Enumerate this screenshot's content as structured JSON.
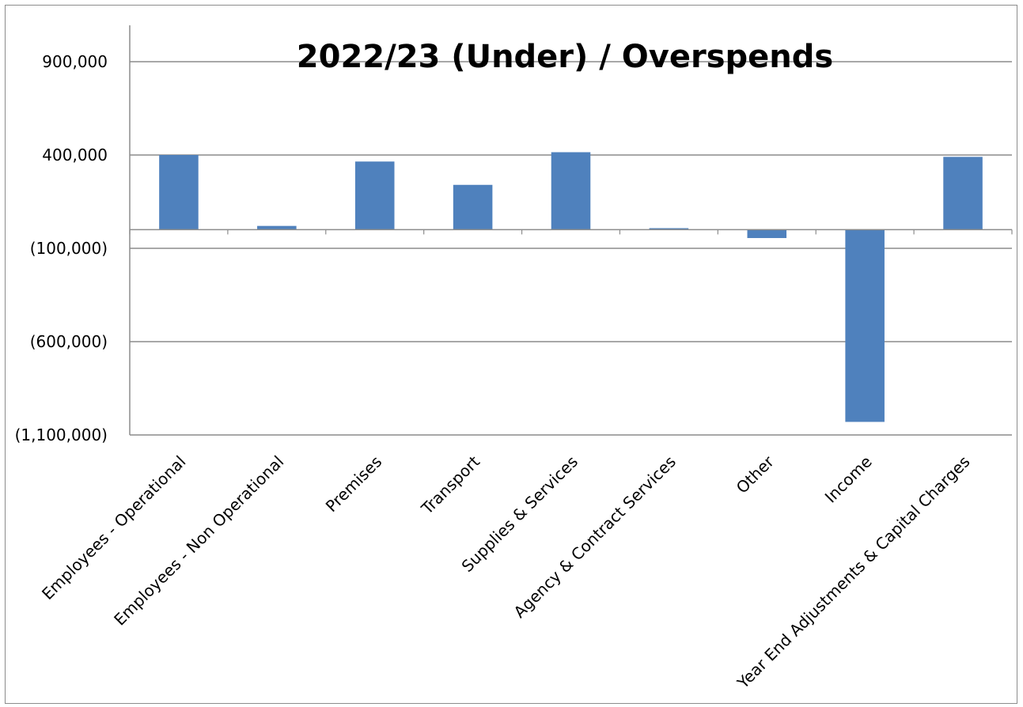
{
  "chart_data": {
    "type": "bar",
    "title": "2022/23 (Under) / Overspends",
    "xlabel": "",
    "ylabel": "",
    "categories": [
      "Employees - Operational",
      "Employees - Non Operational",
      "Premises",
      "Transport",
      "Supplies & Services",
      "Agency & Contract Services",
      "Other",
      "Income",
      "Year End Adjustments & Capital Charges"
    ],
    "values": [
      400000,
      20000,
      365000,
      240000,
      415000,
      8000,
      -45000,
      -1030000,
      390000
    ],
    "ylim": [
      -1100000,
      1000000
    ],
    "yticks": [
      900000,
      400000,
      -100000,
      -600000,
      -1100000
    ],
    "ytick_labels": [
      "900,000",
      "400,000",
      "(100,000)",
      "(600,000)",
      "(1,100,000)"
    ],
    "bar_color": "#4F81BD",
    "grid": true,
    "legend": "none"
  }
}
